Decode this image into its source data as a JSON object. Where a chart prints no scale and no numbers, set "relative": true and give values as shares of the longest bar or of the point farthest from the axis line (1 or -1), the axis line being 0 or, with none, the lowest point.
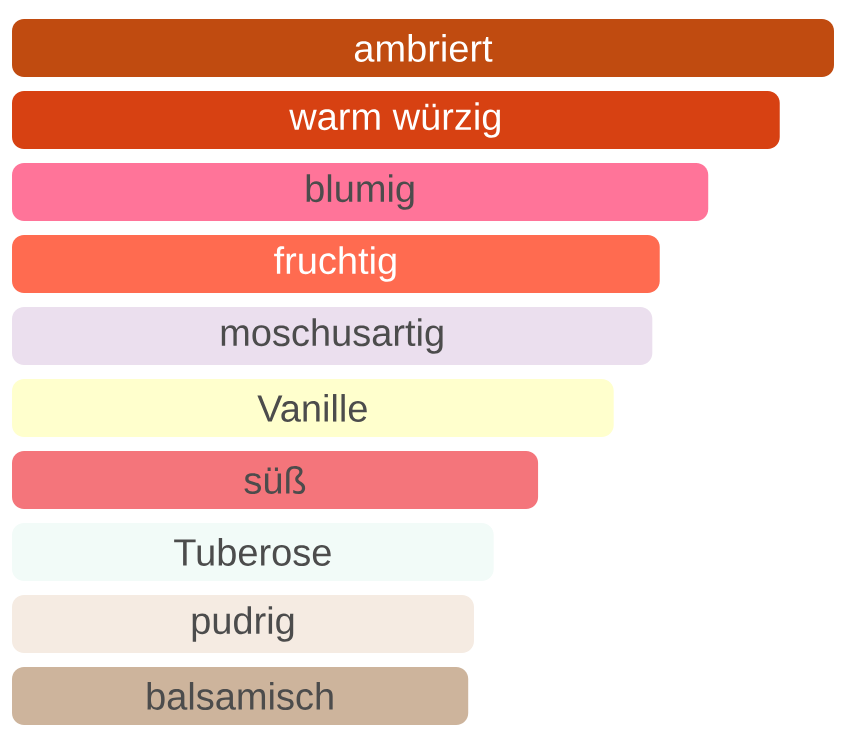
{
  "chart_data": {
    "type": "bar",
    "orientation": "horizontal",
    "relative": true,
    "categories": [
      "ambriert",
      "warm würzig",
      "blumig",
      "fruchtig",
      "moschusartig",
      "Vanille",
      "süß",
      "Tuberose",
      "pudrig",
      "balsamisch"
    ],
    "values": [
      1,
      0.934,
      0.847,
      0.788,
      0.779,
      0.732,
      0.64,
      0.586,
      0.562,
      0.555
    ],
    "colors": [
      "#c04b10",
      "#d74112",
      "#ff7499",
      "#ff6b50",
      "#ebdfee",
      "#ffffcd",
      "#f4757b",
      "#f2fbf8",
      "#f5ebe2",
      "#cdb49c"
    ]
  }
}
